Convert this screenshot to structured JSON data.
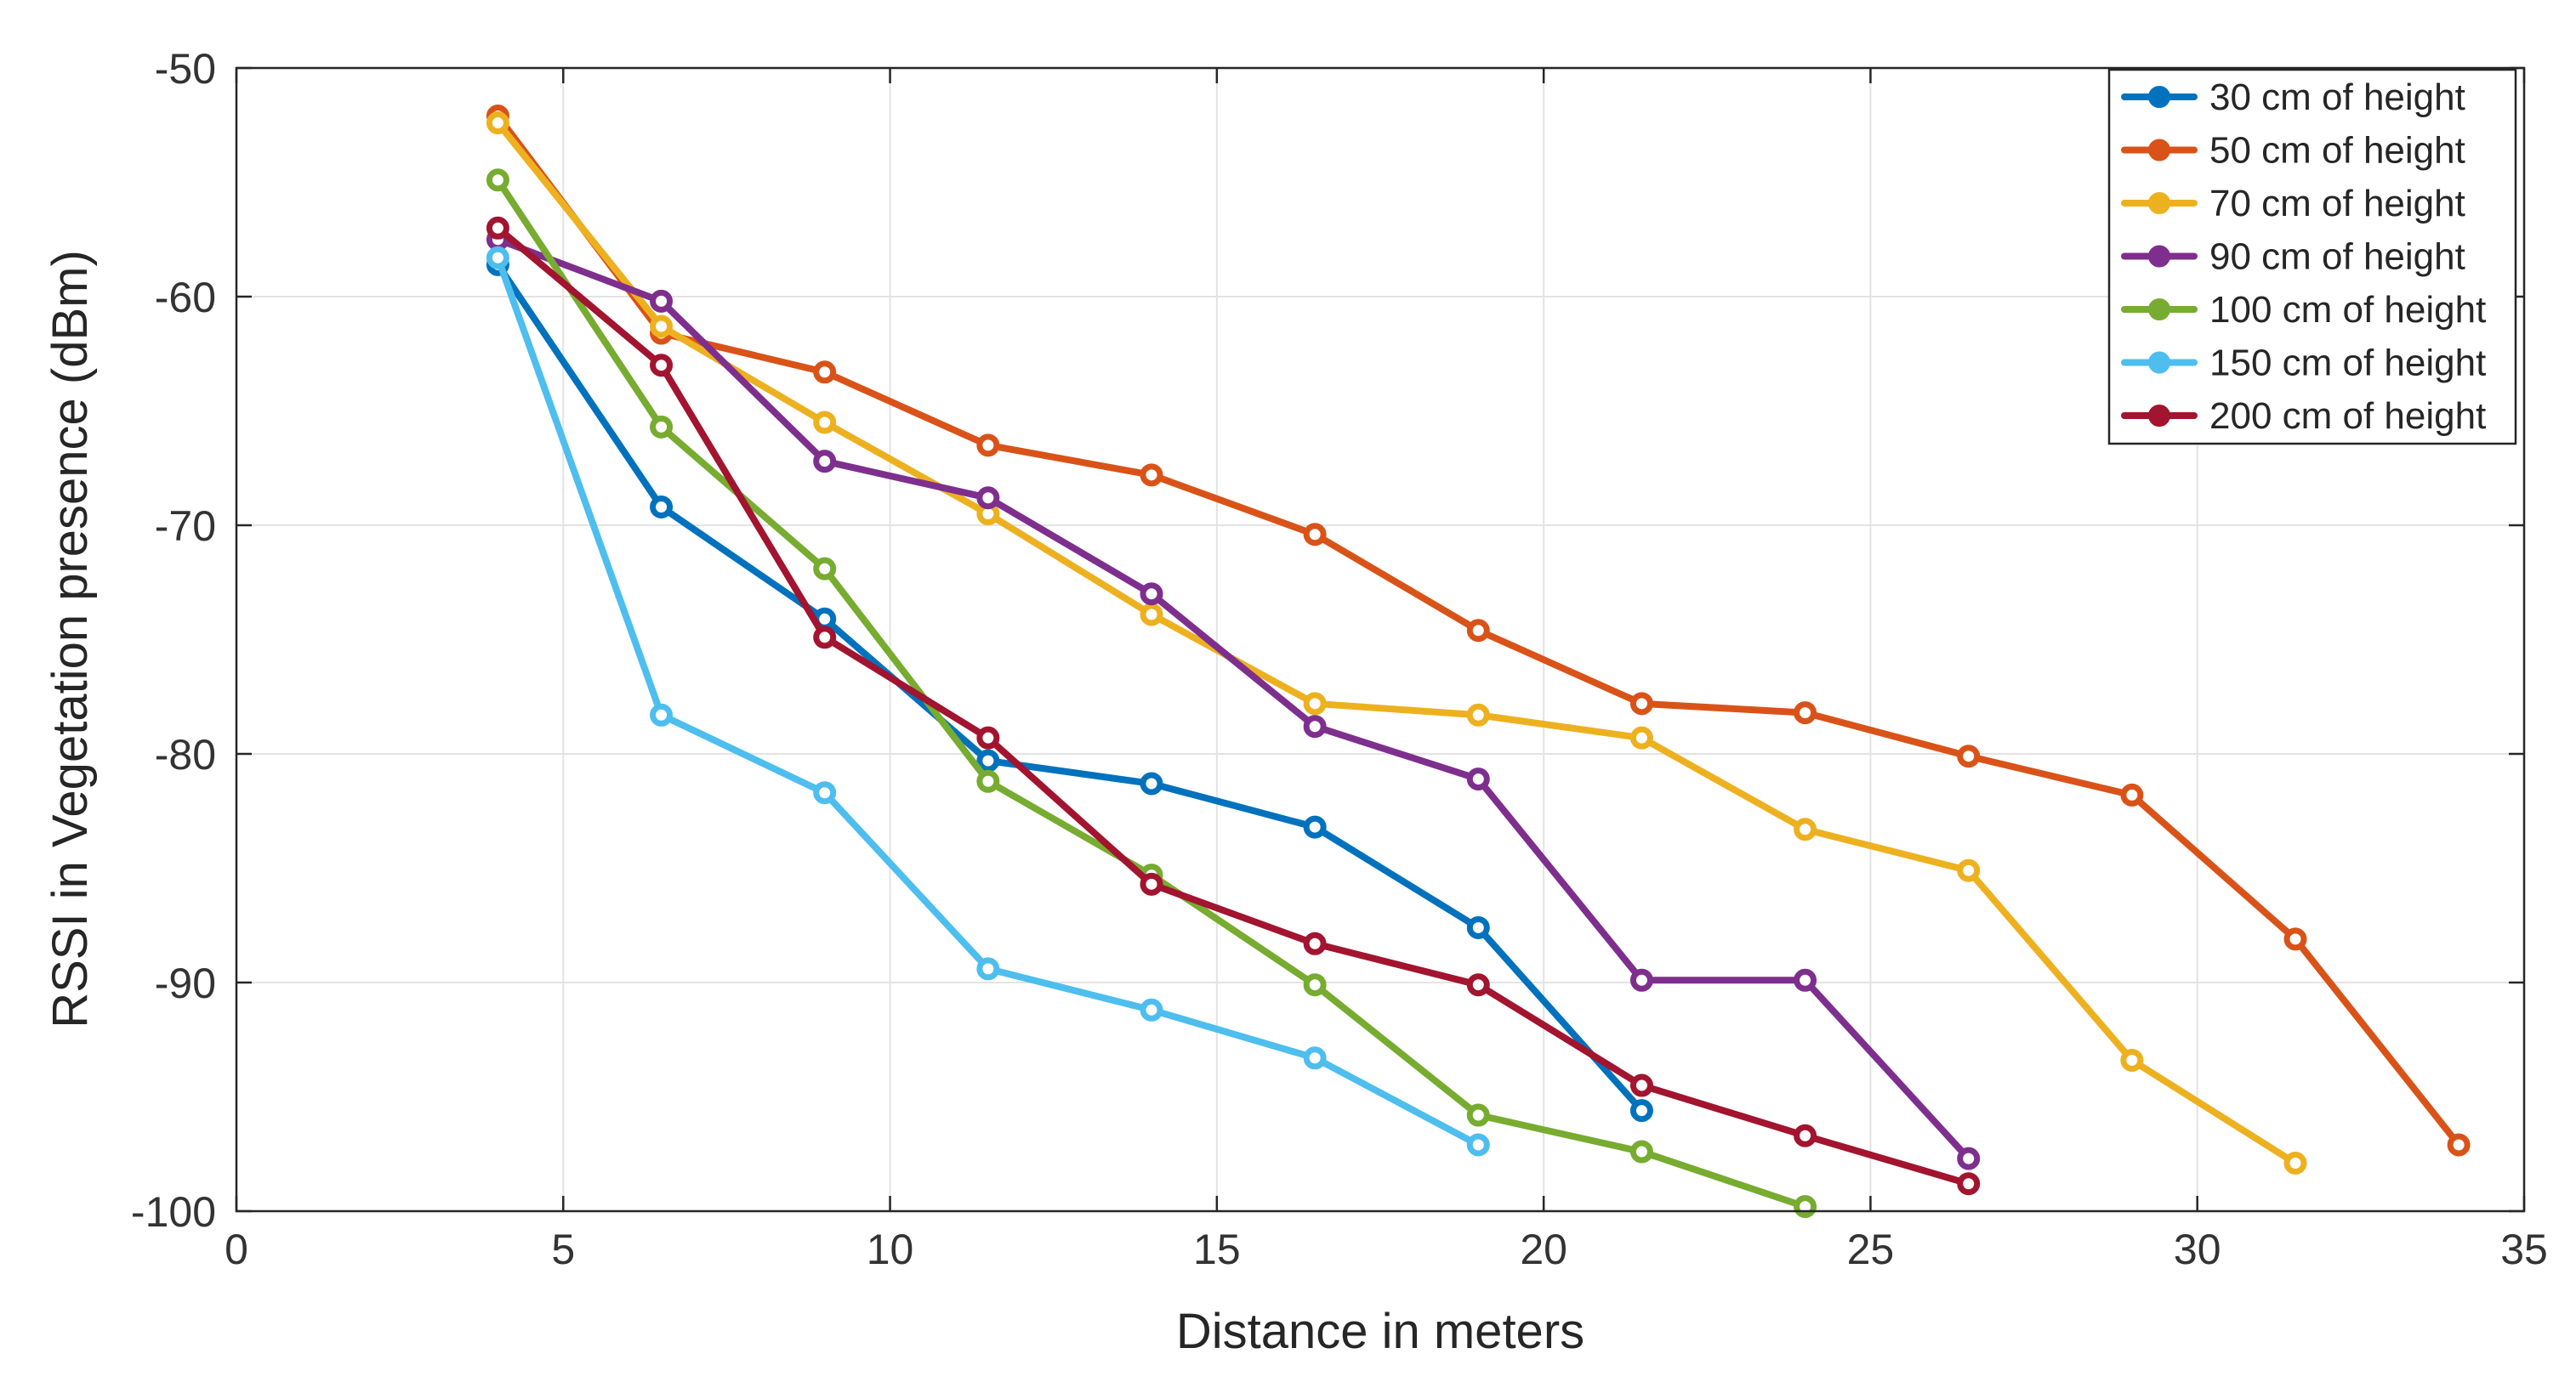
{
  "chart_data": {
    "type": "line",
    "title": "",
    "xlabel": "Distance in meters",
    "ylabel": "RSSI in Vegetation presence (dBm)",
    "xlim": [
      0,
      35
    ],
    "ylim": [
      -100,
      -50
    ],
    "xticks": [
      0,
      5,
      10,
      15,
      20,
      25,
      30,
      35
    ],
    "yticks": [
      -100,
      -90,
      -80,
      -70,
      -60,
      -50
    ],
    "grid": true,
    "legend_position": "top-right",
    "series": [
      {
        "name": "30 cm of height",
        "color": "#0072BD",
        "x": [
          4,
          6.5,
          9,
          11.5,
          14,
          16.5,
          19,
          21.5
        ],
        "y": [
          -58.6,
          -69.2,
          -74.1,
          -80.3,
          -81.3,
          -83.2,
          -87.6,
          -95.6
        ]
      },
      {
        "name": "50 cm of height",
        "color": "#D95319",
        "x": [
          4,
          6.5,
          9,
          11.5,
          14,
          16.5,
          19,
          21.5,
          24,
          26.5,
          29,
          31.5,
          34
        ],
        "y": [
          -52.1,
          -61.6,
          -63.3,
          -66.5,
          -67.8,
          -70.4,
          -74.6,
          -77.8,
          -78.2,
          -80.1,
          -81.8,
          -88.1,
          -97.1
        ]
      },
      {
        "name": "70 cm of height",
        "color": "#EDB120",
        "x": [
          4,
          6.5,
          9,
          11.5,
          14,
          16.5,
          19,
          21.5,
          24,
          26.5,
          29,
          31.5
        ],
        "y": [
          -52.4,
          -61.3,
          -65.5,
          -69.5,
          -73.9,
          -77.8,
          -78.3,
          -79.3,
          -83.3,
          -85.1,
          -93.4,
          -97.9
        ]
      },
      {
        "name": "90 cm of height",
        "color": "#7E2F8E",
        "x": [
          4,
          6.5,
          9,
          11.5,
          14,
          16.5,
          19,
          21.5,
          24,
          26.5
        ],
        "y": [
          -57.5,
          -60.2,
          -67.2,
          -68.8,
          -73.0,
          -78.8,
          -81.1,
          -89.9,
          -89.9,
          -97.7
        ]
      },
      {
        "name": "100 cm of height",
        "color": "#77AC30",
        "x": [
          4,
          6.5,
          9,
          11.5,
          14,
          16.5,
          19,
          21.5,
          24
        ],
        "y": [
          -54.9,
          -65.7,
          -71.9,
          -81.2,
          -85.3,
          -90.1,
          -95.8,
          -97.4,
          -99.8
        ]
      },
      {
        "name": "150 cm of height",
        "color": "#4DBEEE",
        "x": [
          4,
          6.5,
          9,
          11.5,
          14,
          16.5,
          19
        ],
        "y": [
          -58.3,
          -78.3,
          -81.7,
          -89.4,
          -91.2,
          -93.3,
          -97.1
        ]
      },
      {
        "name": "200 cm of height",
        "color": "#A2142F",
        "x": [
          4,
          6.5,
          9,
          11.5,
          14,
          16.5,
          19,
          21.5,
          24,
          26.5
        ],
        "y": [
          -57.0,
          -63.0,
          -74.9,
          -79.3,
          -85.7,
          -88.3,
          -90.1,
          -94.5,
          -96.7,
          -98.8
        ]
      }
    ]
  }
}
